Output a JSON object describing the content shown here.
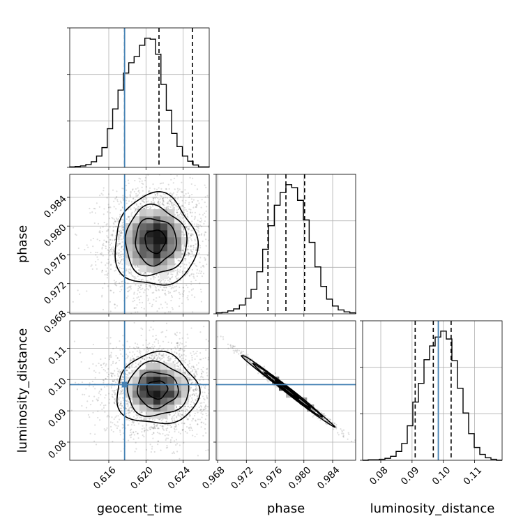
{
  "chart_data": {
    "type": "corner",
    "parameters": [
      "geocent_time",
      "phase",
      "luminosity_distance"
    ],
    "axis_labels": {
      "x": [
        "geocent_time",
        "phase",
        "luminosity_distance"
      ],
      "y": [
        "phase",
        "luminosity_distance"
      ]
    },
    "ranges": {
      "geocent_time": [
        0.6118,
        0.6268
      ],
      "phase": [
        0.9678,
        0.9872
      ],
      "luminosity_distance": [
        0.0742,
        0.1188
      ]
    },
    "ticks": {
      "geocent_time": [
        "0.616",
        "0.620",
        "0.624"
      ],
      "phase": [
        "0.968",
        "0.972",
        "0.976",
        "0.980",
        "0.984"
      ],
      "luminosity_distance": [
        "0.08",
        "0.09",
        "0.10",
        "0.11"
      ]
    },
    "truth": {
      "geocent_time": 0.6177,
      "luminosity_distance": 0.0984,
      "color": "#4682b4"
    },
    "quantiles": {
      "geocent_time": [
        0.6177,
        0.6214,
        0.625
      ],
      "phase": [
        0.975,
        0.9775,
        0.9801
      ],
      "luminosity_distance": [
        0.091,
        0.0968,
        0.1025
      ]
    },
    "histograms": {
      "geocent_time": {
        "edges": [
          0.6118,
          0.6268
        ],
        "counts": [
          1,
          2,
          3,
          6,
          12,
          24,
          42,
          82,
          124,
          164,
          200,
          222,
          235,
          259,
          274,
          272,
          240,
          176,
          121,
          72,
          44,
          24,
          13,
          5,
          1,
          1
        ]
      },
      "phase": {
        "edges": [
          0.9678,
          0.9872
        ],
        "counts": [
          2,
          3,
          6,
          10,
          18,
          32,
          50,
          86,
          132,
          180,
          222,
          248,
          264,
          258,
          232,
          192,
          146,
          96,
          56,
          30,
          16,
          8,
          4,
          2
        ]
      },
      "luminosity_distance": {
        "edges": [
          0.0742,
          0.1188
        ],
        "counts": [
          0,
          1,
          1,
          2,
          4,
          8,
          18,
          34,
          70,
          118,
          156,
          204,
          232,
          250,
          262,
          246,
          202,
          146,
          96,
          54,
          26,
          12,
          5,
          2,
          0
        ]
      }
    },
    "joint": {
      "phase_vs_geocent_time": {
        "center": [
          0.621,
          0.9779
        ],
        "sigma": [
          0.0022,
          0.0032
        ],
        "rho": 0.0
      },
      "luminosity_distance_vs_geocent_time": {
        "center": [
          0.6212,
          0.0968
        ],
        "sigma": [
          0.0022,
          0.0057
        ],
        "rho": 0.0
      },
      "luminosity_distance_vs_phase": {
        "center": [
          0.9776,
          0.0968
        ],
        "sigma": [
          0.0032,
          0.0057
        ],
        "rho": -0.995
      }
    },
    "grid": true,
    "legend": "none"
  }
}
